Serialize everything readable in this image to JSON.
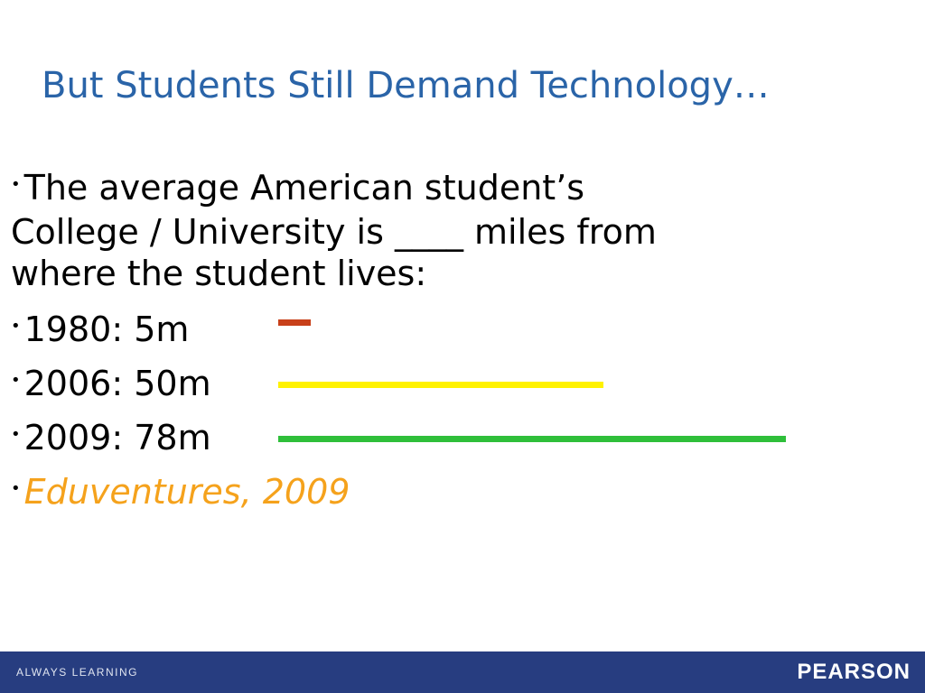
{
  "slide": {
    "title": "But Students Still Demand Technology…",
    "bullet_char": "•",
    "intro": {
      "line1": "The average American student’s",
      "line2": "College / University is ____ miles from",
      "line3": "where the student lives:"
    },
    "items": [
      {
        "text": "1980: 5m",
        "miles": 5,
        "color": "#c8401a"
      },
      {
        "text": "2006: 50m",
        "miles": 50,
        "color": "#fff200"
      },
      {
        "text": "2009: 78m",
        "miles": 78,
        "color": "#2fbf3a"
      }
    ],
    "source": "Eduventures, 2009",
    "colors": {
      "title": "#2a64a8",
      "source": "#f5a21c",
      "footer_bg": "#273d80"
    }
  },
  "footer": {
    "tagline": "ALWAYS LEARNING",
    "brand": "PEARSON"
  }
}
